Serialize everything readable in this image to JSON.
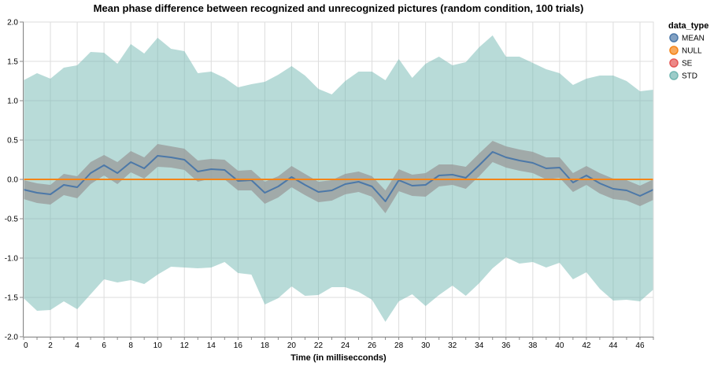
{
  "chart_data": {
    "type": "area",
    "title": "Mean phase difference between recognized and unrecognized pictures (random condition, 100 trials)",
    "xlabel": "Time (in millisecconds)",
    "ylabel": "",
    "xlim": [
      0,
      47
    ],
    "ylim": [
      -2.0,
      2.0
    ],
    "x_ticks": [
      "0",
      "2",
      "4",
      "6",
      "8",
      "10",
      "12",
      "14",
      "16",
      "18",
      "20",
      "22",
      "24",
      "26",
      "28",
      "30",
      "32",
      "34",
      "36",
      "38",
      "40",
      "42",
      "44",
      "46"
    ],
    "y_ticks": [
      "2.0",
      "1.5",
      "1.0",
      "0.5",
      "0.0",
      "-0.5",
      "-1.0",
      "-1.5",
      "-2.0"
    ],
    "grid": true,
    "legend": {
      "title": "data_type",
      "placement": "right",
      "entries": [
        {
          "name": "MEAN",
          "color": "#4c78a8"
        },
        {
          "name": "NULL",
          "color": "#f58518"
        },
        {
          "name": "SE",
          "color": "#e45756"
        },
        {
          "name": "STD",
          "color": "#72b7b2"
        }
      ]
    },
    "x": [
      0,
      1,
      2,
      3,
      4,
      5,
      6,
      7,
      8,
      9,
      10,
      11,
      12,
      13,
      14,
      15,
      16,
      17,
      18,
      19,
      20,
      21,
      22,
      23,
      24,
      25,
      26,
      27,
      28,
      29,
      30,
      31,
      32,
      33,
      34,
      35,
      36,
      37,
      38,
      39,
      40,
      41,
      42,
      43,
      44,
      45,
      46,
      47
    ],
    "series": [
      {
        "name": "MEAN",
        "color": "#4c78a8",
        "values": [
          -0.13,
          -0.17,
          -0.19,
          -0.07,
          -0.1,
          0.08,
          0.18,
          0.08,
          0.22,
          0.14,
          0.3,
          0.28,
          0.25,
          0.1,
          0.13,
          0.12,
          -0.02,
          -0.01,
          -0.17,
          -0.09,
          0.03,
          -0.07,
          -0.16,
          -0.14,
          -0.06,
          -0.03,
          -0.09,
          -0.28,
          -0.01,
          -0.08,
          -0.07,
          0.05,
          0.06,
          0.02,
          0.18,
          0.35,
          0.28,
          0.24,
          0.21,
          0.14,
          0.15,
          -0.04,
          0.05,
          -0.05,
          -0.12,
          -0.14,
          -0.21,
          -0.13
        ]
      },
      {
        "name": "SE",
        "color": "#999999",
        "upper": [
          -0.01,
          -0.05,
          -0.07,
          0.07,
          0.04,
          0.22,
          0.31,
          0.22,
          0.36,
          0.28,
          0.45,
          0.42,
          0.39,
          0.24,
          0.26,
          0.25,
          0.11,
          0.12,
          -0.03,
          0.04,
          0.17,
          0.07,
          -0.03,
          -0.01,
          0.07,
          0.1,
          0.04,
          -0.14,
          0.13,
          0.06,
          0.08,
          0.19,
          0.19,
          0.16,
          0.33,
          0.49,
          0.42,
          0.38,
          0.35,
          0.28,
          0.28,
          0.08,
          0.17,
          0.08,
          0.01,
          -0.01,
          -0.08,
          0.0
        ],
        "lower": [
          -0.25,
          -0.3,
          -0.32,
          -0.2,
          -0.24,
          -0.06,
          0.05,
          -0.06,
          0.09,
          0.01,
          0.16,
          0.15,
          0.12,
          -0.03,
          0.01,
          0.0,
          -0.14,
          -0.14,
          -0.31,
          -0.23,
          -0.1,
          -0.2,
          -0.29,
          -0.27,
          -0.19,
          -0.16,
          -0.22,
          -0.43,
          -0.15,
          -0.21,
          -0.22,
          -0.09,
          -0.07,
          -0.12,
          0.04,
          0.22,
          0.15,
          0.11,
          0.08,
          0.0,
          0.02,
          -0.16,
          -0.07,
          -0.18,
          -0.25,
          -0.27,
          -0.34,
          -0.26
        ]
      },
      {
        "name": "STD",
        "color": "#72b7b2",
        "upper": [
          1.26,
          1.35,
          1.28,
          1.42,
          1.45,
          1.62,
          1.61,
          1.47,
          1.72,
          1.6,
          1.8,
          1.66,
          1.63,
          1.35,
          1.37,
          1.29,
          1.17,
          1.21,
          1.24,
          1.33,
          1.44,
          1.32,
          1.15,
          1.08,
          1.25,
          1.37,
          1.37,
          1.26,
          1.53,
          1.29,
          1.47,
          1.56,
          1.45,
          1.49,
          1.68,
          1.83,
          1.56,
          1.56,
          1.48,
          1.4,
          1.35,
          1.2,
          1.28,
          1.32,
          1.32,
          1.25,
          1.12,
          1.14
        ],
        "lower": [
          -1.51,
          -1.67,
          -1.66,
          -1.55,
          -1.65,
          -1.46,
          -1.27,
          -1.31,
          -1.28,
          -1.33,
          -1.21,
          -1.11,
          -1.12,
          -1.13,
          -1.12,
          -1.05,
          -1.19,
          -1.21,
          -1.59,
          -1.51,
          -1.36,
          -1.48,
          -1.47,
          -1.37,
          -1.37,
          -1.43,
          -1.53,
          -1.81,
          -1.55,
          -1.46,
          -1.61,
          -1.47,
          -1.35,
          -1.48,
          -1.32,
          -1.13,
          -0.99,
          -1.07,
          -1.05,
          -1.12,
          -1.06,
          -1.27,
          -1.18,
          -1.39,
          -1.54,
          -1.53,
          -1.55,
          -1.4
        ]
      },
      {
        "name": "NULL",
        "color": "#f58518",
        "values": [
          0,
          0,
          0,
          0,
          0,
          0,
          0,
          0,
          0,
          0,
          0,
          0,
          0,
          0,
          0,
          0,
          0,
          0,
          0,
          0,
          0,
          0,
          0,
          0,
          0,
          0,
          0,
          0,
          0,
          0,
          0,
          0,
          0,
          0,
          0,
          0,
          0,
          0,
          0,
          0,
          0,
          0,
          0,
          0,
          0,
          0,
          0,
          0
        ]
      }
    ]
  }
}
